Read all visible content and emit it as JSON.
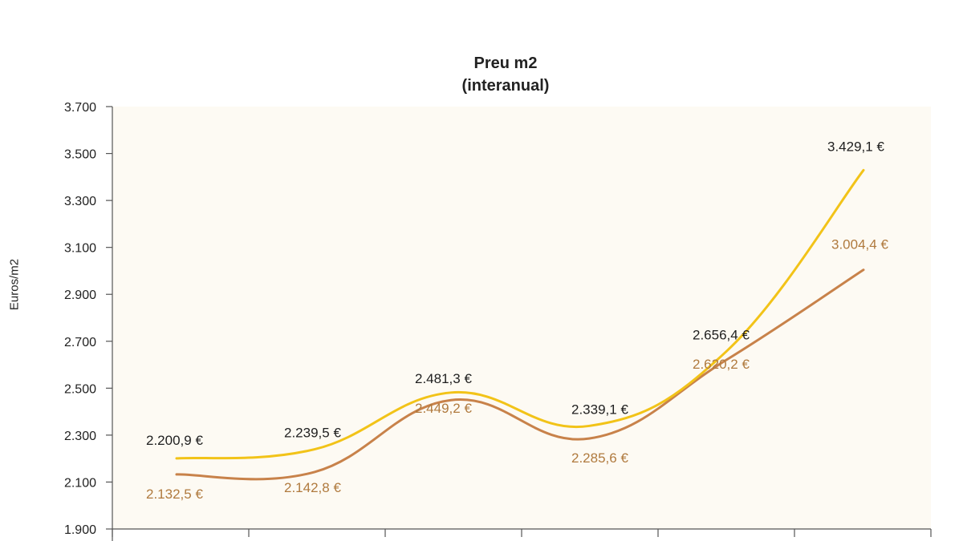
{
  "chart_data": {
    "type": "line",
    "title": "Preu m2",
    "subtitle": "(interanual)",
    "ylabel": "Euros/m2",
    "ylim": [
      1900,
      3700
    ],
    "yticks": [
      1900,
      2100,
      2300,
      2500,
      2700,
      2900,
      3100,
      3300,
      3500,
      3700
    ],
    "ytick_labels": [
      "1.900",
      "2.100",
      "2.300",
      "2.500",
      "2.700",
      "2.900",
      "3.100",
      "3.300",
      "3.500",
      "3.700"
    ],
    "grid": false,
    "background_color": "#fdfaf3",
    "series": [
      {
        "values": [
          2200.9,
          2239.5,
          2481.3,
          2339.1,
          2656.4,
          3429.1
        ],
        "labels": [
          "2.200,9 €",
          "2.239,5 €",
          "2.481,3 €",
          "2.339,1 €",
          "2.656,4 €",
          "3.429,1 €"
        ],
        "color": "#f2c318",
        "label_color": "#1f1f1f"
      },
      {
        "values": [
          2132.5,
          2142.8,
          2449.2,
          2285.6,
          2620.2,
          3004.4
        ],
        "labels": [
          "2.132,5 €",
          "2.142,8 €",
          "2.449,2 €",
          "2.285,6 €",
          "2.620,2 €",
          "3.004,4 €"
        ],
        "color": "#c8824a",
        "label_color": "#b07a3e"
      }
    ]
  }
}
